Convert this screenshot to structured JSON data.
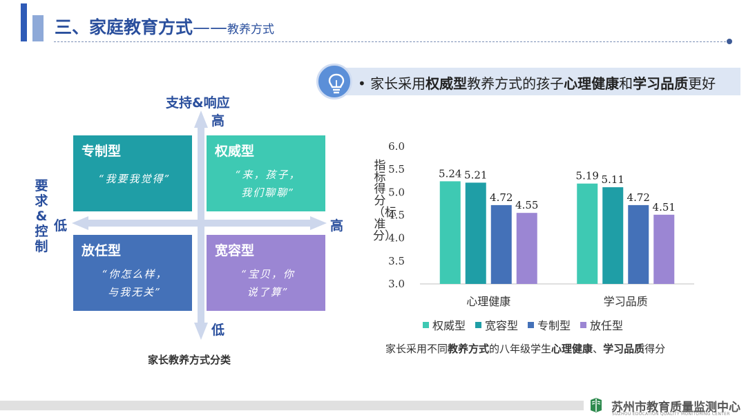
{
  "header": {
    "title": "三、家庭教育方式",
    "dash": "——",
    "subtitle": "教养方式"
  },
  "headline": {
    "parts": [
      "家长采用",
      "权威型",
      "教养方式的孩子",
      "心理健康",
      "和",
      "学习品质",
      "更好"
    ]
  },
  "quadrant": {
    "top_axis_label": "支持&响应",
    "top_end": "高",
    "bottom_end": "低",
    "left_axis_label": "要求&控制",
    "left_end": "低",
    "right_end": "高",
    "caption": "家长教养方式分类",
    "quadrants": [
      {
        "name": "专制型",
        "quote_line1": "“我要我觉得”",
        "quote_line2": ""
      },
      {
        "name": "权威型",
        "quote_line1": "“来，孩子，",
        "quote_line2": "我们聊聊”"
      },
      {
        "name": "放任型",
        "quote_line1": "“你怎么样，",
        "quote_line2": "与我无关”"
      },
      {
        "name": "宽容型",
        "quote_line1": "“宝贝，你",
        "quote_line2": "说了算”"
      }
    ]
  },
  "chart_data": {
    "type": "bar",
    "categories": [
      "心理健康",
      "学习品质"
    ],
    "series": [
      {
        "name": "权威型",
        "values": [
          5.24,
          5.19
        ],
        "color": "#3ec9b3"
      },
      {
        "name": "宽容型",
        "values": [
          5.21,
          5.11
        ],
        "color": "#1f9ea6"
      },
      {
        "name": "专制型",
        "values": [
          4.72,
          4.72
        ],
        "color": "#4471b8"
      },
      {
        "name": "放任型",
        "values": [
          4.55,
          4.51
        ],
        "color": "#9b86d3"
      }
    ],
    "ylabel": "指标得分（标准分）",
    "ylim": [
      3.0,
      6.0
    ],
    "yticks": [
      "3.0",
      "3.5",
      "4.0",
      "4.5",
      "5.0",
      "5.5",
      "6.0"
    ],
    "legend_position": "bottom",
    "grid": false
  },
  "chart_caption": {
    "parts": [
      "家长采用不同",
      "教养方式",
      "的八年级学生",
      "心理健康",
      "、",
      "学习品质",
      "得分"
    ]
  },
  "footer": {
    "org_name": "苏州市教育质量监测中心",
    "org_name_en": "SUZHOU EDUCATION QUALITY MONITORING CENTER"
  },
  "icons": {
    "headline_icon": "lightbulb-icon",
    "footer_logo": "book-logo-icon"
  }
}
